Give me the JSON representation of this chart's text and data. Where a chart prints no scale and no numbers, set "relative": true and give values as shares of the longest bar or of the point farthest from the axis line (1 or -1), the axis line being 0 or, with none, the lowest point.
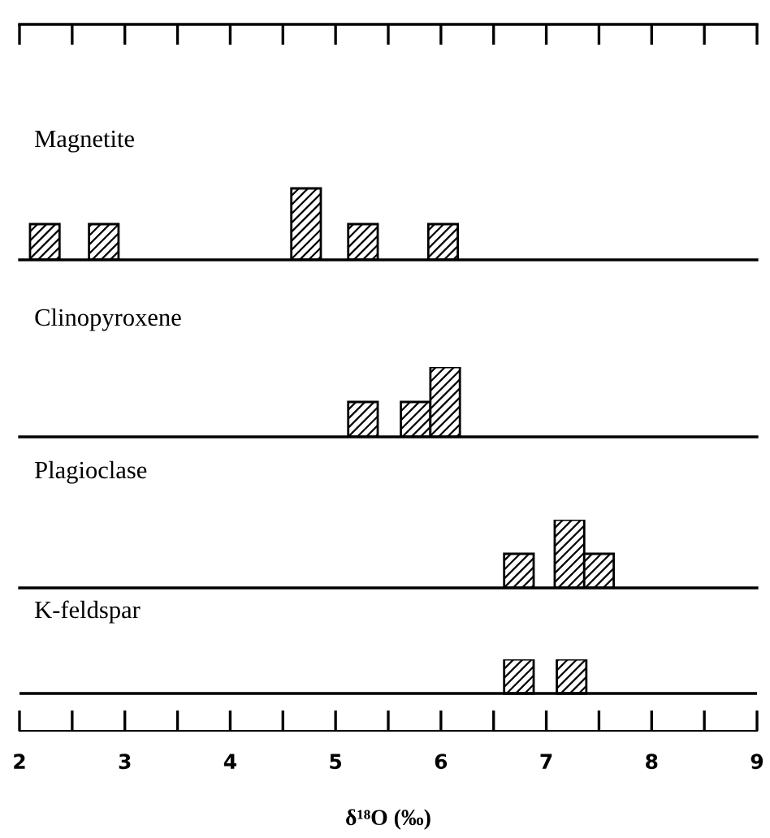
{
  "chart_data": [
    {
      "type": "bar",
      "title": "Magnetite",
      "relative": true,
      "x": [
        2.24,
        2.8,
        4.72,
        5.26,
        6.02
      ],
      "values": [
        0.5,
        0.5,
        1,
        0.5,
        0.5
      ],
      "color": "#000000",
      "xlim": [
        2,
        9
      ],
      "tick_labels": false,
      "grid": false,
      "legend": false
    },
    {
      "type": "bar",
      "title": "Clinopyroxene",
      "relative": true,
      "x": [
        5.26,
        5.76,
        6.04
      ],
      "values": [
        0.5,
        0.5,
        1
      ],
      "color": "#000000",
      "xlim": [
        2,
        9
      ],
      "tick_labels": false,
      "grid": false,
      "legend": false
    },
    {
      "type": "bar",
      "title": "Plagioclase",
      "relative": true,
      "x": [
        6.74,
        7.22,
        7.5
      ],
      "values": [
        0.5,
        1,
        0.5
      ],
      "color": "#000000",
      "xlim": [
        2,
        9
      ],
      "tick_labels": false,
      "grid": false,
      "legend": false
    },
    {
      "type": "bar",
      "title": "K-feldspar",
      "relative": true,
      "x": [
        6.74,
        7.24
      ],
      "values": [
        1,
        1
      ],
      "color": "#000000",
      "xlabel": "δ¹⁸O (‰)",
      "xlim": [
        2,
        9
      ],
      "xticks": [
        2,
        {
          "value": 2.5,
          "label": null
        },
        3,
        {
          "value": 3.5,
          "label": null
        },
        4,
        {
          "value": 4.5,
          "label": null
        },
        5,
        {
          "value": 5.5,
          "label": null
        },
        6,
        {
          "value": 6.5,
          "label": null
        },
        7,
        {
          "value": 7.5,
          "label": null
        },
        8,
        {
          "value": 8.5,
          "label": null
        },
        9
      ],
      "tick_labels": "x",
      "grid": false,
      "legend": false
    }
  ]
}
